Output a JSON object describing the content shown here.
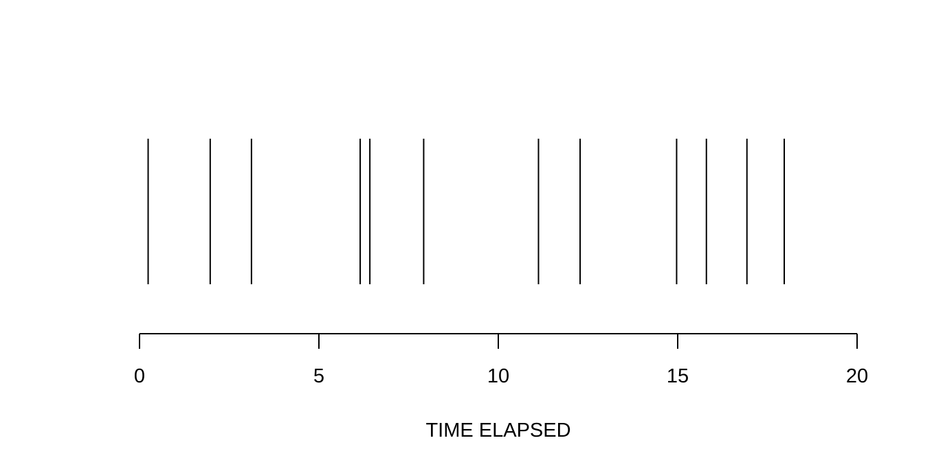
{
  "chart_data": {
    "type": "event-plot",
    "events": [
      0.24,
      1.97,
      3.12,
      6.15,
      6.42,
      7.92,
      11.12,
      12.28,
      14.97,
      15.8,
      16.93,
      17.97
    ],
    "xlim": [
      0,
      20
    ],
    "xticks": [
      0,
      5,
      10,
      15,
      20
    ],
    "tick_labels": [
      "0",
      "5",
      "10",
      "15",
      "20"
    ],
    "xlabel": "TIME ELAPSED",
    "title": "",
    "grid": false,
    "line_color": "#000000"
  }
}
